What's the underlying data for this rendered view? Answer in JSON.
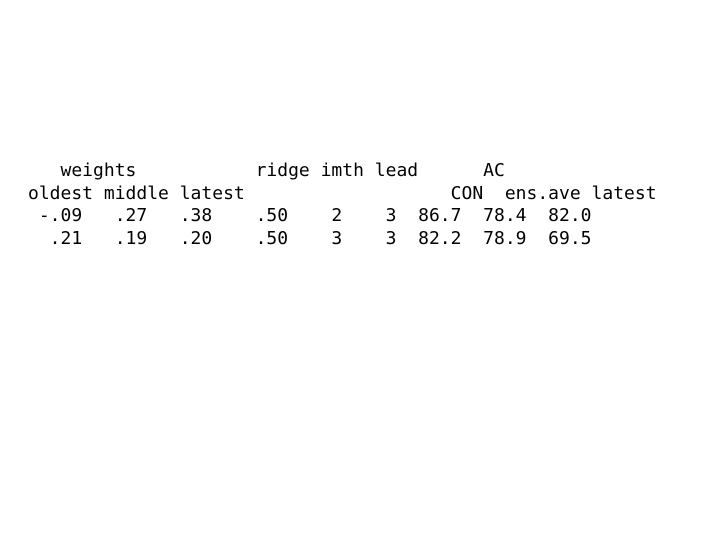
{
  "table": {
    "type": "text-table",
    "font_family": "Courier New",
    "font_size_pt": 13,
    "text_color": "#000000",
    "background_color": "#ffffff",
    "line_height": 1.25,
    "header_groups": {
      "weights": "weights",
      "ridge": "ridge",
      "imth": "imth",
      "lead": "lead",
      "ac": "AC"
    },
    "sub_headers": {
      "oldest": "oldest",
      "middle": "middle",
      "latest": "latest",
      "con": "CON",
      "ens_ave": "ens.ave",
      "ac_latest": "latest"
    },
    "rows": [
      {
        "oldest": "-.09",
        "middle": ".27",
        "latest": ".38",
        "ridge": ".50",
        "imth": "2",
        "lead": "3",
        "con": "86.7",
        "ens_ave": "78.4",
        "ac_latest": "82.0"
      },
      {
        "oldest": ".21",
        "middle": ".19",
        "latest": ".20",
        "ridge": ".50",
        "imth": "3",
        "lead": "3",
        "con": "82.2",
        "ens_ave": "78.9",
        "ac_latest": "69.5"
      }
    ],
    "column_offsets_chars": {
      "oldest": 0,
      "middle": 7,
      "latest": 14,
      "ridge": 22,
      "imth": 28,
      "lead": 33,
      "con": 39,
      "ens_ave": 45,
      "ac_latest": 53
    }
  }
}
